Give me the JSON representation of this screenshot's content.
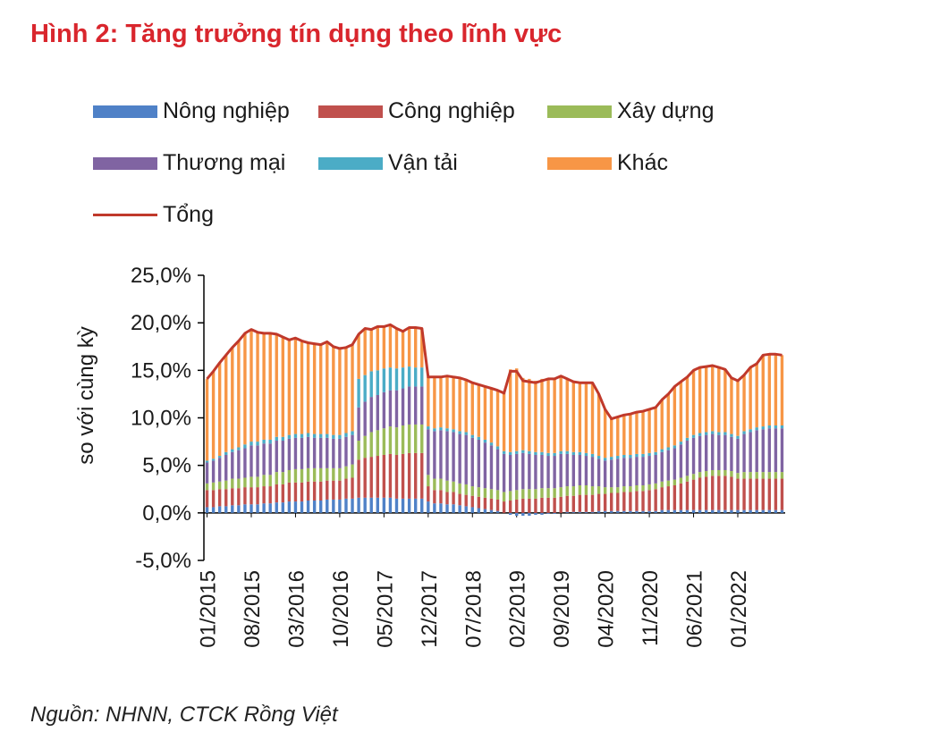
{
  "title": "Hình 2: Tăng trưởng tín dụng theo lĩnh vực",
  "source": "Nguồn:  NHNN, CTCK Rồng Việt",
  "colors": {
    "title": "#d9262d",
    "Nông nghiệp": "#4f81c7",
    "Công nghiệp": "#c0504d",
    "Xây dựng": "#9bbb59",
    "Thương mại": "#8064a2",
    "Vận tải": "#4bacc6",
    "Khác": "#f79646",
    "Tổng": "#c0392b"
  },
  "chart_data": {
    "type": "bar",
    "stacked": true,
    "title": "Hình 2: Tăng trưởng tín dụng theo lĩnh vực",
    "ylabel": "so với cùng kỳ",
    "xlabel": "",
    "ylim": [
      -5,
      25
    ],
    "yticks": [
      "25,0%",
      "20,0%",
      "15,0%",
      "10,0%",
      "5,0%",
      "0,0%",
      "-5,0%"
    ],
    "legend_position": "top",
    "legend": [
      "Nông nghiệp",
      "Công nghiệp",
      "Xây dựng",
      "Thương mại",
      "Vận tải",
      "Khác",
      "Tổng"
    ],
    "x_tick_labels": [
      "01/2015",
      "08/2015",
      "03/2016",
      "10/2016",
      "05/2017",
      "12/2017",
      "07/2018",
      "02/2019",
      "09/2019",
      "04/2020",
      "11/2020",
      "06/2021",
      "01/2022"
    ],
    "categories": [
      "01/2015",
      "02/2015",
      "03/2015",
      "04/2015",
      "05/2015",
      "06/2015",
      "07/2015",
      "08/2015",
      "09/2015",
      "10/2015",
      "11/2015",
      "12/2015",
      "01/2016",
      "02/2016",
      "03/2016",
      "04/2016",
      "05/2016",
      "06/2016",
      "07/2016",
      "08/2016",
      "09/2016",
      "10/2016",
      "11/2016",
      "12/2016",
      "01/2017",
      "02/2017",
      "03/2017",
      "04/2017",
      "05/2017",
      "06/2017",
      "07/2017",
      "08/2017",
      "09/2017",
      "10/2017",
      "11/2017",
      "12/2017",
      "01/2018",
      "02/2018",
      "03/2018",
      "04/2018",
      "05/2018",
      "06/2018",
      "07/2018",
      "08/2018",
      "09/2018",
      "10/2018",
      "11/2018",
      "12/2018",
      "01/2019",
      "02/2019",
      "03/2019",
      "04/2019",
      "05/2019",
      "06/2019",
      "07/2019",
      "08/2019",
      "09/2019",
      "10/2019",
      "11/2019",
      "12/2019",
      "01/2020",
      "02/2020",
      "03/2020",
      "04/2020",
      "05/2020",
      "06/2020",
      "07/2020",
      "08/2020",
      "09/2020",
      "10/2020",
      "11/2020",
      "12/2020",
      "01/2021",
      "02/2021",
      "03/2021",
      "04/2021",
      "05/2021",
      "06/2021",
      "07/2021",
      "08/2021",
      "09/2021",
      "10/2021",
      "11/2021",
      "12/2021",
      "01/2022",
      "02/2022",
      "03/2022",
      "04/2022",
      "05/2022",
      "06/2022",
      "07/2022",
      "08/2022"
    ],
    "series": [
      {
        "name": "Nông nghiệp",
        "values": [
          0.6,
          0.6,
          0.7,
          0.7,
          0.8,
          0.8,
          0.9,
          0.9,
          0.9,
          1.0,
          1.0,
          1.1,
          1.1,
          1.2,
          1.2,
          1.2,
          1.3,
          1.3,
          1.3,
          1.4,
          1.4,
          1.4,
          1.5,
          1.5,
          1.6,
          1.6,
          1.6,
          1.6,
          1.6,
          1.6,
          1.5,
          1.5,
          1.5,
          1.5,
          1.5,
          1.2,
          1.0,
          1.0,
          0.9,
          0.9,
          0.8,
          0.7,
          0.6,
          0.5,
          0.4,
          0.3,
          0.2,
          0.0,
          -0.2,
          -0.3,
          -0.3,
          -0.3,
          -0.2,
          -0.2,
          -0.1,
          -0.1,
          0.0,
          0.1,
          0.1,
          0.1,
          0.1,
          0.1,
          0.2,
          0.2,
          0.2,
          0.2,
          0.2,
          0.2,
          0.2,
          0.2,
          0.2,
          0.2,
          0.3,
          0.3,
          0.3,
          0.3,
          0.3,
          0.3,
          0.3,
          0.3,
          0.3,
          0.3,
          0.3,
          0.3,
          0.3,
          0.3,
          0.3,
          0.3,
          0.3,
          0.3,
          0.3,
          0.3
        ]
      },
      {
        "name": "Công nghiệp",
        "values": [
          1.8,
          1.8,
          1.8,
          1.8,
          1.8,
          1.8,
          1.8,
          1.8,
          1.8,
          1.8,
          1.8,
          1.9,
          1.9,
          2.0,
          2.0,
          2.0,
          2.0,
          2.0,
          2.0,
          2.0,
          2.0,
          2.0,
          2.1,
          2.2,
          4.0,
          4.2,
          4.3,
          4.4,
          4.5,
          4.6,
          4.6,
          4.7,
          4.8,
          4.8,
          4.8,
          1.6,
          1.4,
          1.4,
          1.3,
          1.3,
          1.2,
          1.2,
          1.2,
          1.2,
          1.2,
          1.2,
          1.2,
          1.2,
          1.3,
          1.4,
          1.5,
          1.5,
          1.5,
          1.6,
          1.6,
          1.6,
          1.7,
          1.7,
          1.7,
          1.8,
          1.8,
          1.8,
          1.8,
          1.8,
          1.9,
          1.9,
          2.0,
          2.0,
          2.1,
          2.1,
          2.2,
          2.3,
          2.4,
          2.5,
          2.6,
          2.8,
          3.0,
          3.2,
          3.4,
          3.5,
          3.6,
          3.6,
          3.6,
          3.5,
          3.3,
          3.3,
          3.3,
          3.3,
          3.3,
          3.3,
          3.3,
          3.3
        ]
      },
      {
        "name": "Xây dựng",
        "values": [
          0.7,
          0.8,
          0.8,
          0.9,
          1.0,
          1.0,
          1.0,
          1.1,
          1.1,
          1.2,
          1.2,
          1.3,
          1.3,
          1.3,
          1.4,
          1.4,
          1.4,
          1.4,
          1.4,
          1.3,
          1.3,
          1.3,
          1.3,
          1.4,
          2.0,
          2.3,
          2.6,
          2.7,
          2.8,
          2.9,
          2.9,
          3.0,
          3.0,
          3.0,
          3.0,
          1.2,
          1.2,
          1.2,
          1.2,
          1.1,
          1.1,
          1.1,
          1.0,
          1.0,
          1.0,
          1.0,
          1.0,
          1.0,
          1.0,
          1.0,
          1.0,
          1.0,
          1.0,
          1.0,
          1.0,
          1.0,
          1.0,
          1.0,
          1.0,
          1.0,
          1.0,
          0.9,
          0.8,
          0.7,
          0.6,
          0.6,
          0.6,
          0.6,
          0.6,
          0.6,
          0.6,
          0.6,
          0.6,
          0.6,
          0.6,
          0.6,
          0.6,
          0.6,
          0.6,
          0.6,
          0.6,
          0.6,
          0.6,
          0.6,
          0.6,
          0.7,
          0.7,
          0.7,
          0.7,
          0.7,
          0.7,
          0.7
        ]
      },
      {
        "name": "Thương mại",
        "values": [
          2.2,
          2.3,
          2.5,
          2.7,
          2.8,
          3.0,
          3.1,
          3.3,
          3.3,
          3.3,
          3.3,
          3.3,
          3.3,
          3.3,
          3.3,
          3.3,
          3.3,
          3.2,
          3.2,
          3.2,
          3.1,
          3.1,
          3.1,
          3.1,
          3.5,
          3.6,
          3.7,
          3.7,
          3.8,
          3.8,
          3.9,
          3.9,
          4.0,
          4.0,
          4.0,
          4.8,
          5.0,
          5.1,
          5.2,
          5.2,
          5.2,
          5.2,
          5.1,
          5.0,
          4.8,
          4.6,
          4.3,
          4.0,
          3.8,
          3.8,
          3.8,
          3.7,
          3.6,
          3.5,
          3.4,
          3.4,
          3.5,
          3.4,
          3.3,
          3.2,
          3.1,
          3.1,
          2.9,
          2.8,
          2.9,
          3.0,
          3.0,
          3.0,
          3.0,
          3.0,
          3.0,
          3.0,
          3.1,
          3.2,
          3.3,
          3.5,
          3.7,
          3.8,
          3.8,
          3.8,
          3.8,
          3.7,
          3.7,
          3.6,
          3.6,
          4.0,
          4.2,
          4.4,
          4.5,
          4.6,
          4.6,
          4.6
        ]
      },
      {
        "name": "Vận tải",
        "values": [
          0.2,
          0.2,
          0.2,
          0.3,
          0.3,
          0.3,
          0.4,
          0.4,
          0.4,
          0.4,
          0.4,
          0.4,
          0.4,
          0.4,
          0.4,
          0.4,
          0.4,
          0.4,
          0.4,
          0.4,
          0.4,
          0.4,
          0.4,
          0.4,
          3.0,
          2.8,
          2.7,
          2.6,
          2.5,
          2.4,
          2.3,
          2.2,
          2.1,
          2.0,
          2.0,
          0.3,
          0.3,
          0.3,
          0.3,
          0.3,
          0.3,
          0.3,
          0.3,
          0.3,
          0.3,
          0.3,
          0.3,
          0.3,
          0.3,
          0.3,
          0.3,
          0.3,
          0.3,
          0.3,
          0.3,
          0.3,
          0.3,
          0.3,
          0.3,
          0.3,
          0.3,
          0.3,
          0.3,
          0.3,
          0.3,
          0.3,
          0.3,
          0.3,
          0.3,
          0.3,
          0.3,
          0.3,
          0.3,
          0.3,
          0.3,
          0.3,
          0.3,
          0.3,
          0.3,
          0.3,
          0.3,
          0.3,
          0.3,
          0.3,
          0.3,
          0.3,
          0.3,
          0.3,
          0.3,
          0.3,
          0.3,
          0.3
        ]
      },
      {
        "name": "Khác",
        "values": [
          8.6,
          9.2,
          9.8,
          10.2,
          10.7,
          11.2,
          11.7,
          11.8,
          11.5,
          11.2,
          11.2,
          10.8,
          10.5,
          10.0,
          10.1,
          9.8,
          9.5,
          9.5,
          9.4,
          9.7,
          9.3,
          9.1,
          9.0,
          9.1,
          4.7,
          4.9,
          4.4,
          4.6,
          4.4,
          4.5,
          4.2,
          3.8,
          4.1,
          4.2,
          4.1,
          5.2,
          5.4,
          5.3,
          5.5,
          5.5,
          5.6,
          5.5,
          5.5,
          5.5,
          5.6,
          5.7,
          5.9,
          6.1,
          8.7,
          8.7,
          7.6,
          7.6,
          7.5,
          7.7,
          7.9,
          7.9,
          7.9,
          7.6,
          7.4,
          7.3,
          7.4,
          7.5,
          6.5,
          5.1,
          4.0,
          4.1,
          4.2,
          4.3,
          4.4,
          4.5,
          4.6,
          4.7,
          5.2,
          5.6,
          6.2,
          6.3,
          6.4,
          6.8,
          6.9,
          6.9,
          6.9,
          6.8,
          6.6,
          5.9,
          5.8,
          5.9,
          6.5,
          6.7,
          7.5,
          7.5,
          7.5,
          7.4
        ]
      },
      {
        "name": "Tổng",
        "type": "line",
        "values": [
          14.1,
          14.9,
          15.8,
          16.6,
          17.4,
          18.1,
          18.9,
          19.3,
          19.0,
          18.9,
          18.9,
          18.8,
          18.5,
          18.2,
          18.4,
          18.1,
          17.9,
          17.8,
          17.7,
          18.0,
          17.5,
          17.3,
          17.4,
          17.7,
          18.8,
          19.4,
          19.3,
          19.6,
          19.6,
          19.8,
          19.4,
          19.1,
          19.5,
          19.5,
          19.4,
          14.3,
          14.3,
          14.3,
          14.4,
          14.3,
          14.2,
          14.0,
          13.7,
          13.5,
          13.3,
          13.1,
          12.9,
          12.6,
          14.9,
          14.9,
          13.9,
          13.8,
          13.7,
          13.9,
          14.1,
          14.1,
          14.4,
          14.1,
          13.8,
          13.7,
          13.7,
          13.7,
          12.5,
          10.9,
          9.9,
          10.1,
          10.3,
          10.4,
          10.6,
          10.7,
          10.9,
          11.1,
          11.9,
          12.5,
          13.3,
          13.8,
          14.3,
          15.0,
          15.3,
          15.4,
          15.5,
          15.3,
          15.1,
          14.2,
          13.9,
          14.5,
          15.3,
          15.7,
          16.6,
          16.7,
          16.7,
          16.6
        ]
      }
    ]
  }
}
